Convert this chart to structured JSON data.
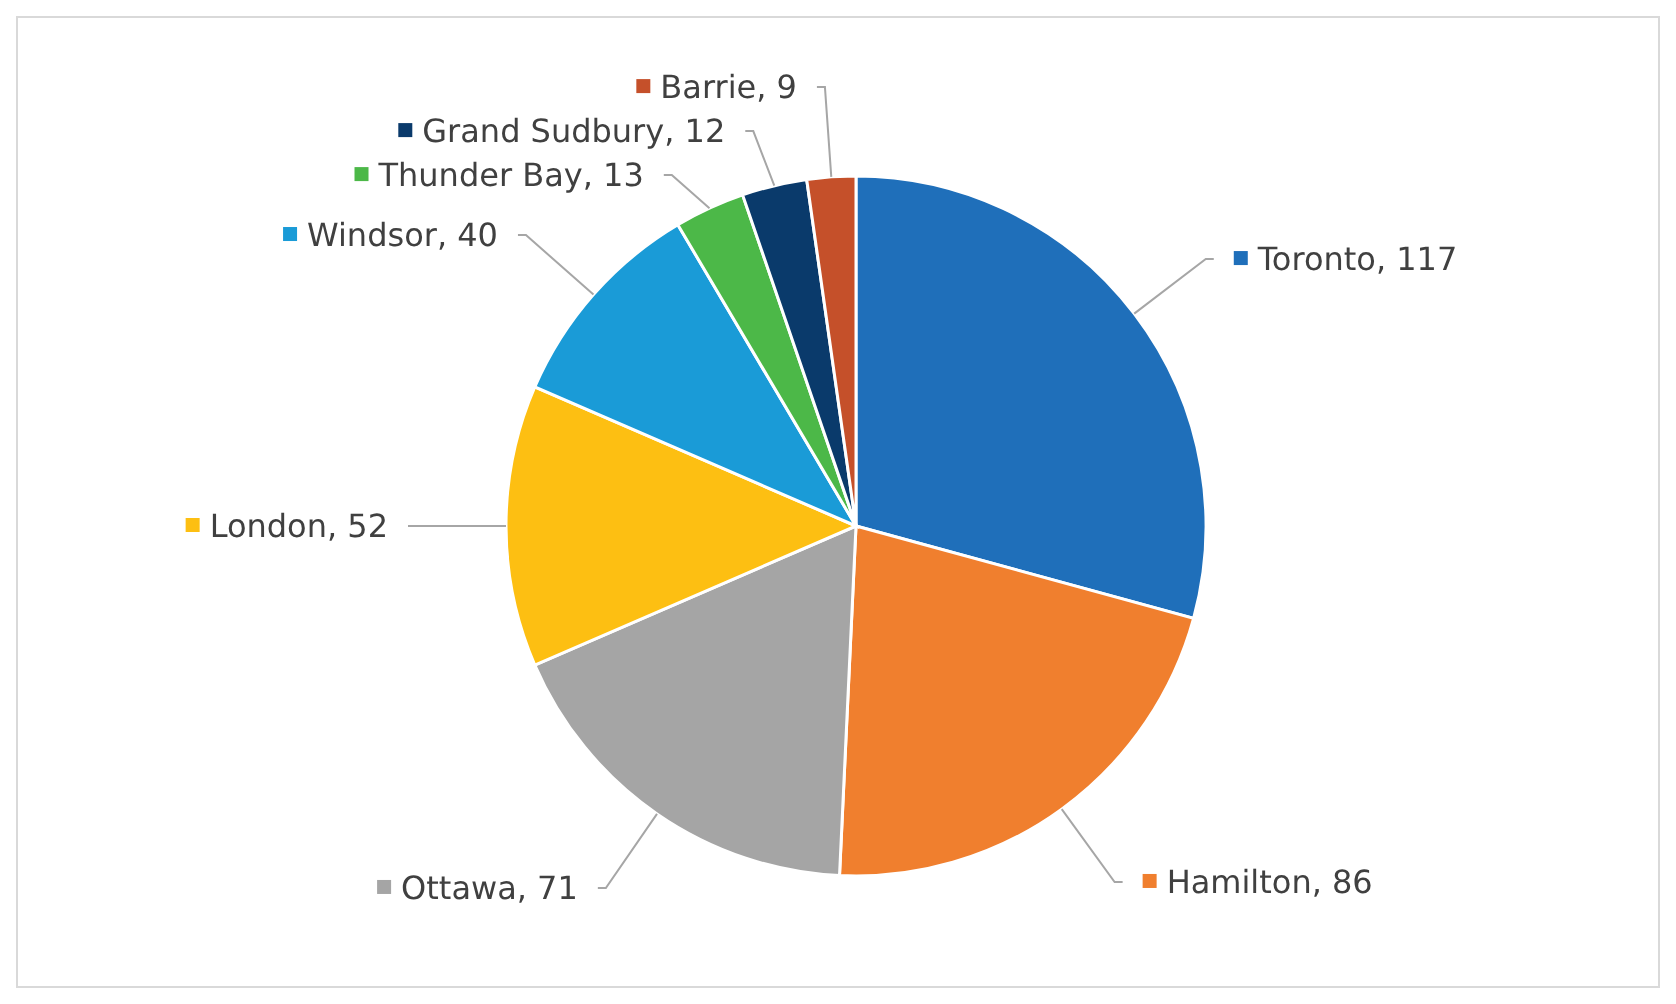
{
  "chart_data": {
    "type": "pie",
    "categories": [
      "Toronto",
      "Hamilton",
      "Ottawa",
      "London",
      "Windsor",
      "Thunder Bay",
      "Grand Sudbury",
      "Barrie"
    ],
    "values": [
      117,
      86,
      71,
      52,
      40,
      13,
      12,
      9
    ],
    "colors": [
      "#1f6fba",
      "#f07f2e",
      "#a5a5a5",
      "#fdbf12",
      "#1a9bd7",
      "#4cb848",
      "#0a3a6b",
      "#c5502a"
    ],
    "value_labels": [
      ", 117",
      ", 86",
      ", 71",
      ", 52",
      ", 40",
      ", 13",
      ", 12",
      ", 9"
    ],
    "legend": "top left"
  }
}
